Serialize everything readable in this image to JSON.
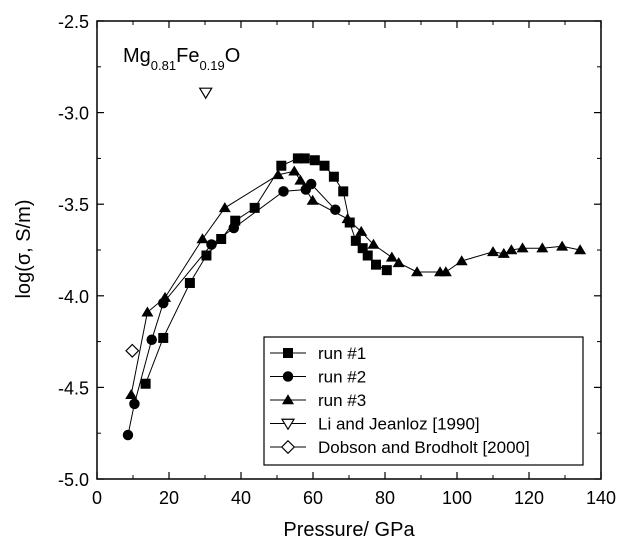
{
  "chart_data": {
    "type": "scatter",
    "xlabel": "Pressure/ GPa",
    "ylabel": "log(σ, S/m)",
    "xlim": [
      0,
      140
    ],
    "ylim": [
      -5.0,
      -2.5
    ],
    "x_ticks": [
      0,
      20,
      40,
      60,
      80,
      100,
      120,
      140
    ],
    "y_ticks": [
      -5.0,
      -4.5,
      -4.0,
      -3.5,
      -3.0,
      -2.5
    ],
    "grid": false,
    "legend_position": "bottom-right",
    "annotation": {
      "parts": [
        {
          "text": "Mg",
          "sub": false
        },
        {
          "text": "0.81",
          "sub": true
        },
        {
          "text": "Fe",
          "sub": false
        },
        {
          "text": "0.19",
          "sub": true
        },
        {
          "text": "O",
          "sub": false
        }
      ]
    },
    "series": [
      {
        "name": "run #1",
        "marker": "square",
        "line": true,
        "points": [
          [
            13.5,
            -4.48
          ],
          [
            18.4,
            -4.23
          ],
          [
            25.8,
            -3.93
          ],
          [
            30.4,
            -3.78
          ],
          [
            34.5,
            -3.69
          ],
          [
            38.4,
            -3.59
          ],
          [
            43.8,
            -3.52
          ],
          [
            51.2,
            -3.29
          ],
          [
            55.8,
            -3.25
          ],
          [
            57.7,
            -3.25
          ],
          [
            60.5,
            -3.26
          ],
          [
            63.2,
            -3.29
          ],
          [
            65.8,
            -3.35
          ],
          [
            68.4,
            -3.43
          ],
          [
            70.2,
            -3.6
          ],
          [
            71.9,
            -3.7
          ],
          [
            73.8,
            -3.74
          ],
          [
            75.2,
            -3.78
          ],
          [
            77.5,
            -3.83
          ],
          [
            80.5,
            -3.86
          ]
        ]
      },
      {
        "name": "run #2",
        "marker": "circle",
        "line": true,
        "points": [
          [
            8.6,
            -4.76
          ],
          [
            10.4,
            -4.59
          ],
          [
            15.2,
            -4.24
          ],
          [
            18.4,
            -4.04
          ],
          [
            31.8,
            -3.72
          ],
          [
            38.0,
            -3.63
          ],
          [
            51.8,
            -3.43
          ],
          [
            58.0,
            -3.42
          ],
          [
            59.5,
            -3.39
          ],
          [
            66.2,
            -3.53
          ]
        ]
      },
      {
        "name": "run #3",
        "marker": "triangle",
        "line": true,
        "points": [
          [
            9.5,
            -4.54
          ],
          [
            14.0,
            -4.09
          ],
          [
            18.9,
            -4.01
          ],
          [
            29.3,
            -3.69
          ],
          [
            35.5,
            -3.52
          ],
          [
            50.3,
            -3.34
          ],
          [
            54.8,
            -3.32
          ],
          [
            56.5,
            -3.37
          ],
          [
            59.9,
            -3.48
          ],
          [
            69.6,
            -3.58
          ],
          [
            73.4,
            -3.65
          ],
          [
            76.8,
            -3.72
          ],
          [
            81.9,
            -3.79
          ],
          [
            83.8,
            -3.82
          ],
          [
            88.9,
            -3.87
          ],
          [
            95.3,
            -3.87
          ],
          [
            96.9,
            -3.87
          ],
          [
            101.3,
            -3.81
          ],
          [
            110.0,
            -3.76
          ],
          [
            113.0,
            -3.77
          ],
          [
            115.1,
            -3.75
          ],
          [
            118.2,
            -3.74
          ],
          [
            123.7,
            -3.74
          ],
          [
            129.2,
            -3.73
          ],
          [
            134.2,
            -3.75
          ]
        ]
      },
      {
        "name": "Li and Jeanloz [1990]",
        "marker": "triangle-down-open",
        "line": false,
        "points": [
          [
            30.2,
            -2.89
          ]
        ]
      },
      {
        "name": "Dobson and Brodholt [2000]",
        "marker": "diamond-open",
        "line": false,
        "points": [
          [
            9.8,
            -4.3
          ]
        ]
      }
    ]
  }
}
